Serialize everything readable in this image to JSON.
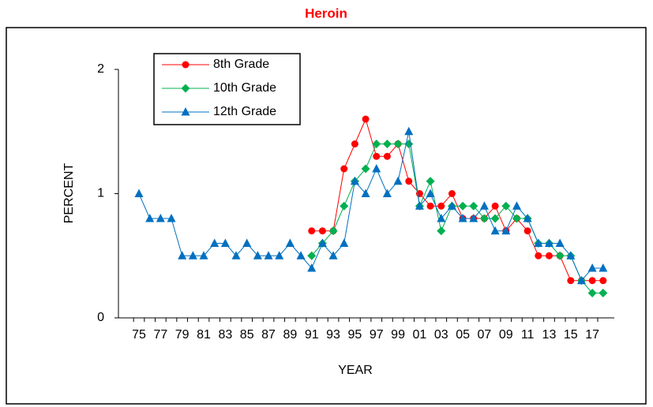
{
  "chart_data": {
    "type": "line",
    "title": "Heroin",
    "xlabel": "YEAR",
    "ylabel": "PERCENT",
    "categories": [
      "75",
      null,
      "77",
      null,
      "79",
      null,
      "81",
      null,
      "83",
      null,
      "85",
      null,
      "87",
      null,
      "89",
      null,
      "91",
      null,
      "93",
      null,
      "95",
      null,
      "97",
      null,
      "99",
      null,
      "01",
      null,
      "03",
      null,
      "05",
      null,
      "07",
      null,
      "09",
      null,
      "11",
      null,
      "13",
      null,
      "15",
      null,
      "17",
      null
    ],
    "series": [
      {
        "name": "8th Grade",
        "color": "#ff0000",
        "marker": "circle",
        "values": [
          null,
          null,
          null,
          null,
          null,
          null,
          null,
          null,
          null,
          null,
          null,
          null,
          null,
          null,
          null,
          null,
          0.7,
          0.7,
          0.7,
          1.2,
          1.4,
          1.6,
          1.3,
          1.3,
          1.4,
          1.1,
          1.0,
          0.9,
          0.9,
          1.0,
          0.8,
          0.8,
          0.8,
          0.9,
          0.7,
          0.8,
          0.7,
          0.5,
          0.5,
          0.5,
          0.3,
          0.3,
          0.3,
          0.3
        ]
      },
      {
        "name": "10th Grade",
        "color": "#00b050",
        "marker": "diamond",
        "values": [
          null,
          null,
          null,
          null,
          null,
          null,
          null,
          null,
          null,
          null,
          null,
          null,
          null,
          null,
          null,
          null,
          0.5,
          0.6,
          0.7,
          0.9,
          1.1,
          1.2,
          1.4,
          1.4,
          1.4,
          1.4,
          0.9,
          1.1,
          0.7,
          0.9,
          0.9,
          0.9,
          0.8,
          0.8,
          0.9,
          0.8,
          0.8,
          0.6,
          0.6,
          0.5,
          0.5,
          0.3,
          0.2,
          0.2
        ]
      },
      {
        "name": "12th Grade",
        "color": "#0070c0",
        "marker": "triangle",
        "values": [
          1.0,
          0.8,
          0.8,
          0.8,
          0.5,
          0.5,
          0.5,
          0.6,
          0.6,
          0.5,
          0.6,
          0.5,
          0.5,
          0.5,
          0.6,
          0.5,
          0.4,
          0.6,
          0.5,
          0.6,
          1.1,
          1.0,
          1.2,
          1.0,
          1.1,
          1.5,
          0.9,
          1.0,
          0.8,
          0.9,
          0.8,
          0.8,
          0.9,
          0.7,
          0.7,
          0.9,
          0.8,
          0.6,
          0.6,
          0.6,
          0.5,
          0.3,
          0.4,
          0.4
        ]
      }
    ],
    "ylim": [
      0,
      2
    ],
    "yticks": [
      0,
      1,
      2
    ],
    "grid": false,
    "legend": "upper left"
  }
}
